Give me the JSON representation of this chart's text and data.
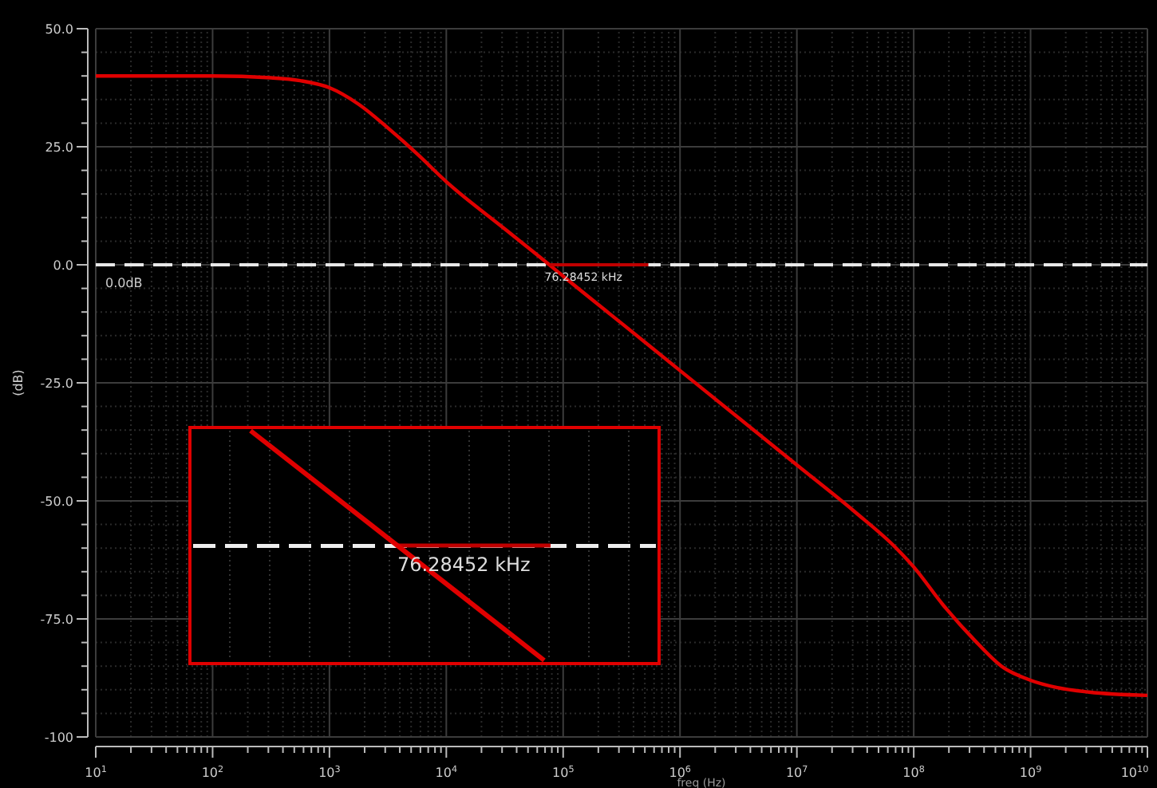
{
  "chart_data": {
    "type": "line",
    "xlabel": "freq (Hz)",
    "ylabel": "(dB)",
    "log": "x",
    "grid": true,
    "marker": "none",
    "line_style": "solid",
    "x": [
      10,
      100,
      316,
      562,
      1000,
      1778,
      3162,
      5623,
      10000,
      31623,
      76284.52,
      100000,
      316228,
      1000000,
      3162278,
      10000000,
      31622777,
      70794578,
      100000000,
      177827941,
      331131121,
      562341325,
      1000000000,
      1659586907,
      3162277660,
      10000000000
    ],
    "series": [
      {
        "color": "#e00000",
        "values": [
          40,
          40,
          39.6,
          39,
          37.5,
          34,
          29,
          23.5,
          17.6,
          7.6,
          0,
          -2.4,
          -12.4,
          -22.4,
          -32.4,
          -42.4,
          -52.4,
          -60,
          -64,
          -72,
          -79.5,
          -85,
          -88,
          -89.5,
          -90.5,
          -91.2
        ]
      }
    ],
    "xlim": [
      10,
      10000000000
    ],
    "xticks": [
      {
        "value": 10,
        "label": "10$^{1}$"
      },
      {
        "value": 100,
        "label": "10$^{2}$"
      },
      {
        "value": 1000,
        "label": "10$^{3}$"
      },
      {
        "value": 10000,
        "label": "10$^{4}$"
      },
      {
        "value": 100000,
        "label": "10$^{5}$"
      },
      {
        "value": 1000000,
        "label": "10$^{6}$"
      },
      {
        "value": 10000000,
        "label": "10$^{7}$"
      },
      {
        "value": 100000000,
        "label": "10$^{8}$"
      },
      {
        "value": 1000000000,
        "label": "10$^{9}$"
      },
      {
        "value": 10000000000,
        "label": "10$^{10}$"
      }
    ],
    "ylim": [
      -100,
      50
    ],
    "yticks": [
      {
        "value": -100,
        "label": "-100"
      },
      {
        "value": -75,
        "label": "-75.0"
      },
      {
        "value": -50,
        "label": "-50.0"
      },
      {
        "value": -25,
        "label": "-25.0"
      },
      {
        "value": 0,
        "label": "0.0"
      },
      {
        "value": 25,
        "label": "25.0"
      },
      {
        "value": 50,
        "label": "50.0"
      }
    ],
    "ref_lines": [
      {
        "axis": "y",
        "value": 0,
        "label": "0.0dB",
        "color": "#e8e8e8",
        "line_style": "dashed"
      }
    ],
    "annotations": [
      {
        "text": "76.28452 kHz",
        "x": 76284.52,
        "y": 0
      },
      "76.28452 kHz"
    ]
  }
}
